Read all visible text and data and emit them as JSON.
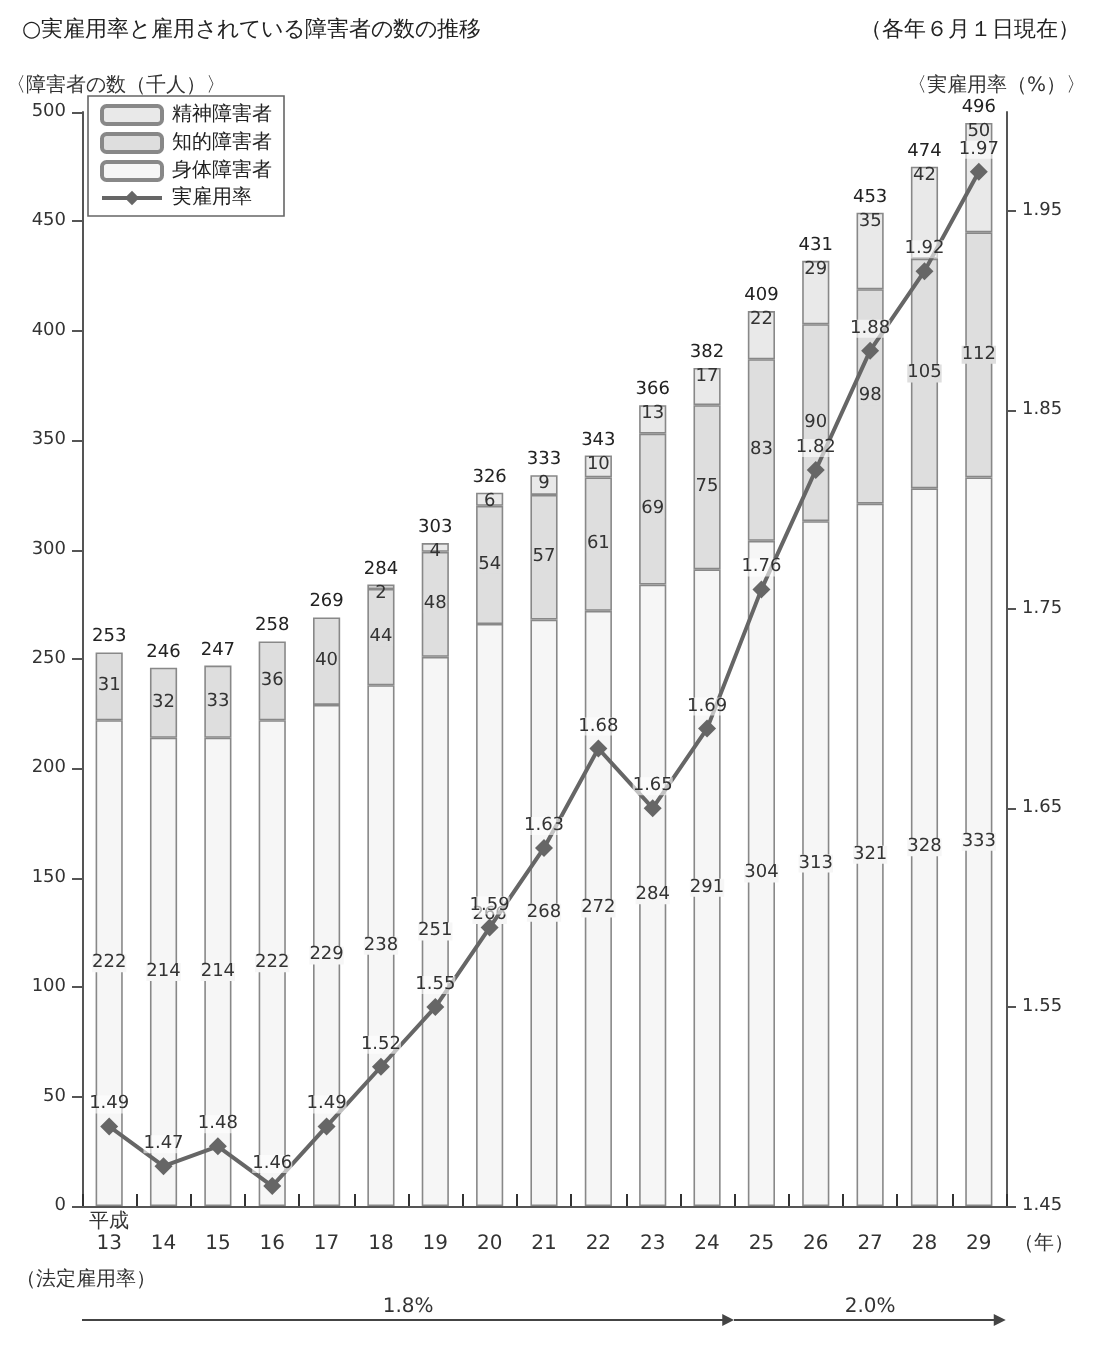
{
  "chart_data": {
    "type": "bar",
    "title": "○実雇用率と雇用されている障害者の数の推移",
    "subtitle": "（各年６月１日現在）",
    "ylabel": "〈障害者の数（千人）〉",
    "y2label": "〈実雇用率（%）〉",
    "xlabel": "（年）",
    "categories": [
      "13",
      "14",
      "15",
      "16",
      "17",
      "18",
      "19",
      "20",
      "21",
      "22",
      "23",
      "24",
      "25",
      "26",
      "27",
      "28",
      "29"
    ],
    "stacked": true,
    "series": [
      {
        "name": "身体障害者",
        "color": "#f6f6f6",
        "values": [
          222,
          214,
          214,
          222,
          229,
          238,
          251,
          266,
          268,
          272,
          284,
          291,
          304,
          313,
          321,
          328,
          333
        ]
      },
      {
        "name": "知的障害者",
        "color": "#dedede",
        "values": [
          31,
          32,
          33,
          36,
          40,
          44,
          48,
          54,
          57,
          61,
          69,
          75,
          83,
          90,
          98,
          105,
          112
        ]
      },
      {
        "name": "精神障害者",
        "color": "#e9e9e9",
        "values": [
          null,
          null,
          null,
          null,
          null,
          2,
          4,
          6,
          9,
          10,
          13,
          17,
          22,
          29,
          35,
          42,
          50
        ]
      },
      {
        "name": "実雇用率",
        "type": "line",
        "axis": "y2",
        "color": "#666666",
        "marker": "diamond",
        "values": [
          1.49,
          1.47,
          1.48,
          1.46,
          1.49,
          1.52,
          1.55,
          1.59,
          1.63,
          1.68,
          1.65,
          1.69,
          1.76,
          1.82,
          1.88,
          1.92,
          1.97
        ]
      }
    ],
    "totals": [
      "253",
      "246",
      "247",
      "258",
      "269",
      "284",
      "303",
      "326",
      "333",
      "343",
      "366",
      "382",
      "409",
      "431",
      "453",
      "474",
      "496"
    ],
    "data_labels": true,
    "ylim": [
      0,
      500
    ],
    "yticks": [
      0,
      50,
      100,
      150,
      200,
      250,
      300,
      350,
      400,
      450,
      500
    ],
    "y2lim": [
      1.45,
      2.0
    ],
    "y2ticks": [
      1.45,
      1.55,
      1.65,
      1.75,
      1.85,
      1.95
    ],
    "annotations": [
      "平成",
      "（法定雇用率）",
      "1.8%",
      "2.0%"
    ],
    "legend": "top left",
    "grid": false
  }
}
